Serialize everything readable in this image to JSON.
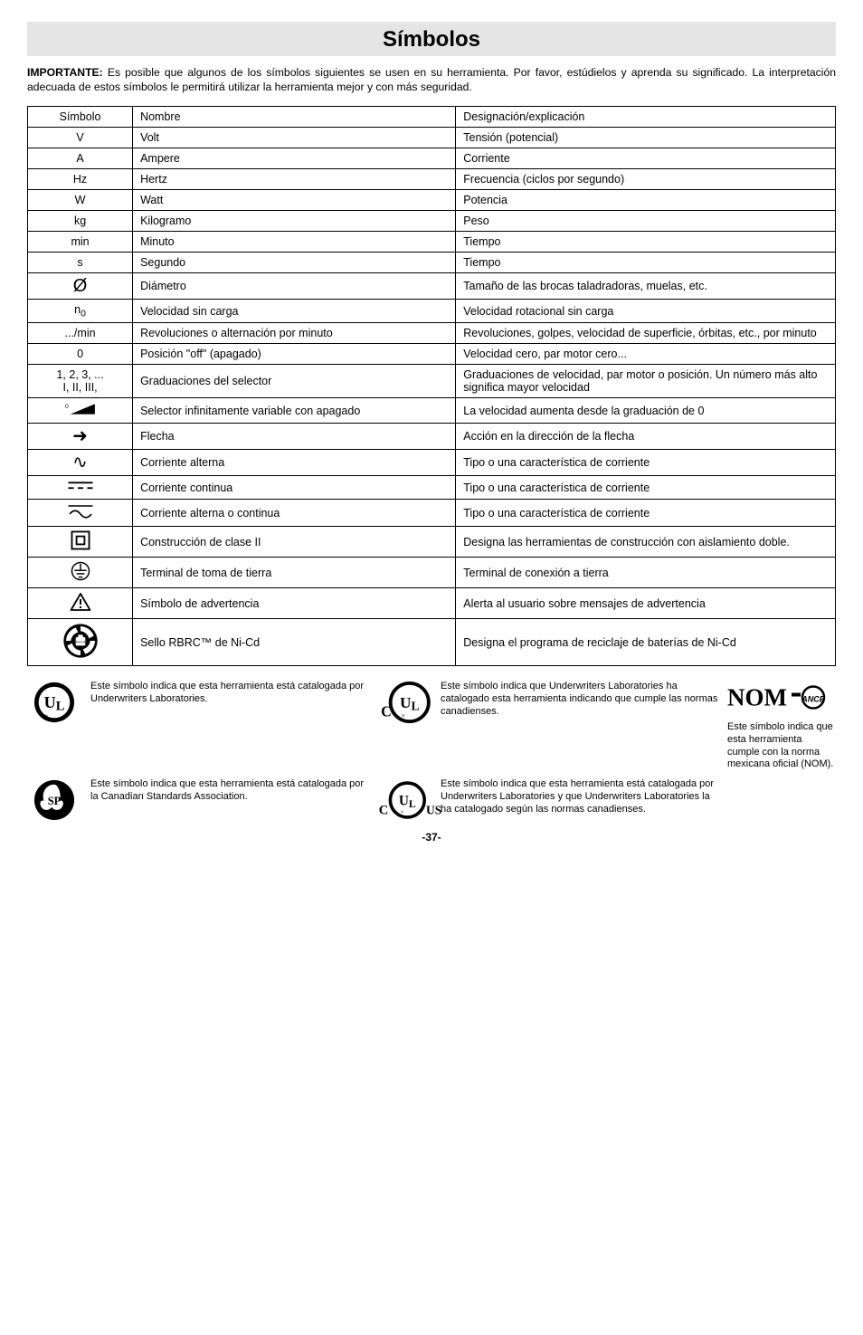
{
  "page": {
    "title": "Símbolos",
    "intro_label": "IMPORTANTE:",
    "intro_text": "  Es posible que algunos de los símbolos siguientes se usen en su herramienta.  Por favor, estúdielos y aprenda su significado.  La interpretación adecuada de estos símbolos le permitirá utilizar la herramienta mejor y con más seguridad.",
    "page_number": "-37-"
  },
  "table": {
    "headers": [
      "Símbolo",
      "Nombre",
      "Designación/explicación"
    ],
    "col_widths_pct": [
      13,
      40,
      47
    ],
    "rows": [
      {
        "sym_text": "V",
        "name": "Volt",
        "desc": "Tensión (potencial)"
      },
      {
        "sym_text": "A",
        "name": "Ampere",
        "desc": "Corriente"
      },
      {
        "sym_text": "Hz",
        "name": "Hertz",
        "desc": "Frecuencia (ciclos por segundo)"
      },
      {
        "sym_text": "W",
        "name": "Watt",
        "desc": "Potencia"
      },
      {
        "sym_text": "kg",
        "name": "Kilogramo",
        "desc": "Peso"
      },
      {
        "sym_text": "min",
        "name": "Minuto",
        "desc": "Tiempo"
      },
      {
        "sym_text": "s",
        "name": "Segundo",
        "desc": "Tiempo"
      },
      {
        "sym_glyph": "Ø",
        "name": "Diámetro",
        "desc": "Tamaño de las brocas taladradoras, muelas, etc."
      },
      {
        "sym_html": "n<sub>0</sub>",
        "name": "Velocidad sin carga",
        "desc": "Velocidad rotacional sin carga"
      },
      {
        "sym_text": ".../min",
        "name": "Revoluciones o alternación por minuto",
        "desc": "Revoluciones, golpes, velocidad de superficie, órbitas, etc., por minuto"
      },
      {
        "sym_text": "0",
        "name": "Posición \"off\" (apagado)",
        "desc": "Velocidad cero, par motor cero..."
      },
      {
        "sym_html": "1, 2, 3, ...<br>I, II, III,",
        "name": "Graduaciones del selector",
        "desc": "Graduaciones de velocidad, par motor o posición.  Un número más alto significa mayor velocidad"
      },
      {
        "sym_svg": "selector-wedge",
        "name": "Selector infinitamente variable con apagado",
        "desc": "La velocidad aumenta desde la graduación de 0"
      },
      {
        "sym_glyph": "➜",
        "name": "Flecha",
        "desc": "Acción en la dirección de la flecha"
      },
      {
        "sym_glyph": "∿",
        "name": "Corriente alterna",
        "desc": "Tipo o una característica de corriente"
      },
      {
        "sym_svg": "dc",
        "name": "Corriente continua",
        "desc": "Tipo o una característica de corriente"
      },
      {
        "sym_svg": "acdc",
        "name": "Corriente alterna o continua",
        "desc": "Tipo o una característica de corriente"
      },
      {
        "sym_svg": "class2",
        "name": "Construcción de clase II",
        "desc": "Designa las herramientas de construcción con aislamiento doble."
      },
      {
        "sym_svg": "earth",
        "name": "Terminal de toma de tierra",
        "desc": "Terminal de conexión a tierra"
      },
      {
        "sym_svg": "warn",
        "name": "Símbolo de advertencia",
        "desc": "Alerta al usuario sobre mensajes de advertencia"
      },
      {
        "sym_svg": "rbrc",
        "name": "Sello RBRC™ de Ni-Cd",
        "desc": "Designa el programa de reciclaje de baterías de Ni-Cd"
      }
    ]
  },
  "footer": {
    "ul": "Este símbolo indica que esta herramienta está catalogada por Underwriters Laboratories.",
    "csa": "Este símbolo indica que esta herramienta está catalogada por la Canadian Standards Association.",
    "cul": "Este símbolo indica que Underwriters Laboratories ha catalogado esta herramienta indicando que cumple las normas canadienses.",
    "culus": "Este símbolo indica que esta herramienta está catalogada por Underwriters Laboratories y que Underwriters Laboratories la ha catalogado según las normas canadienses.",
    "nom": "Este símbolo indica que esta herramienta cumple con la norma mexicana oficial (NOM)."
  },
  "style": {
    "body_font": "Arial",
    "title_fontsize": 24,
    "title_bg": "#e5e5e5",
    "intro_fontsize": 12.2,
    "table_fontsize": 12.5,
    "footer_fontsize": 11,
    "border_color": "#000000",
    "bg_color": "#ffffff"
  }
}
